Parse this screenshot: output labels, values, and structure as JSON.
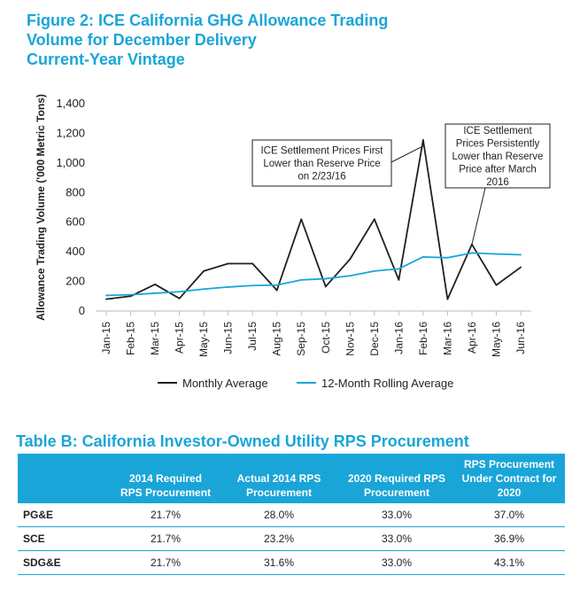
{
  "figure": {
    "title_lines": [
      "Figure 2: ICE California GHG Allowance Trading",
      "Volume for December Delivery",
      "Current-Year Vintage"
    ]
  },
  "chart_data": {
    "type": "line",
    "title": "Figure 2: ICE California GHG Allowance Trading Volume for December Delivery Current-Year Vintage",
    "xlabel": "",
    "ylabel": "Allowance Trading Volume ('000 Metric Tons)",
    "ylim": [
      0,
      1400
    ],
    "yticks": [
      0,
      200,
      400,
      600,
      800,
      1000,
      1200,
      1400
    ],
    "ytick_labels": [
      "0",
      "200",
      "400",
      "600",
      "800",
      "1,000",
      "1,200",
      "1,400"
    ],
    "categories": [
      "Jan-15",
      "Feb-15",
      "Mar-15",
      "Apr-15",
      "May-15",
      "Jun-15",
      "Jul-15",
      "Aug-15",
      "Sep-15",
      "Oct-15",
      "Nov-15",
      "Dec-15",
      "Jan-16",
      "Feb-16",
      "Mar-16",
      "Apr-16",
      "May-16",
      "Jun-16"
    ],
    "series": [
      {
        "name": "Monthly Average",
        "color": "#231f20",
        "values": [
          80,
          100,
          180,
          85,
          270,
          320,
          320,
          140,
          620,
          165,
          350,
          620,
          210,
          1155,
          80,
          450,
          175,
          295
        ]
      },
      {
        "name": "12-Month Rolling Average",
        "color": "#1aa5d8",
        "values": [
          105,
          110,
          120,
          130,
          148,
          162,
          172,
          175,
          210,
          218,
          238,
          270,
          285,
          365,
          360,
          392,
          385,
          380
        ]
      }
    ],
    "legend_position": "bottom",
    "annotations": [
      {
        "lines": [
          "ICE Settlement Prices First",
          "Lower than Reserve Price",
          "on  2/23/16"
        ],
        "target_category": "Feb-16",
        "target_value": 1150
      },
      {
        "lines": [
          "ICE Settlement",
          "Prices Persistently",
          "Lower than Reserve",
          "Price after March",
          "2016"
        ],
        "target_category": "Apr-16",
        "target_value": 450
      }
    ]
  },
  "table": {
    "title": "Table B: California Investor-Owned Utility RPS Procurement",
    "headers": [
      "",
      "2014 Required RPS Procurement",
      "Actual 2014 RPS Procurement",
      "2020 Required RPS Procurement",
      "RPS Procurement Under Contract for 2020"
    ],
    "rows": [
      [
        "PG&E",
        "21.7%",
        "28.0%",
        "33.0%",
        "37.0%"
      ],
      [
        "SCE",
        "21.7%",
        "23.2%",
        "33.0%",
        "36.9%"
      ],
      [
        "SDG&E",
        "21.7%",
        "31.6%",
        "33.0%",
        "43.1%"
      ]
    ]
  }
}
